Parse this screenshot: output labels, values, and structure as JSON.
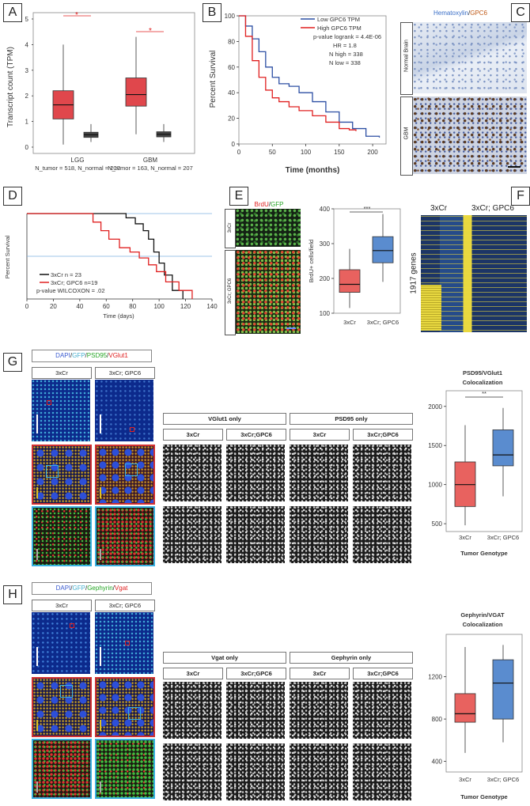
{
  "panels": {
    "A": {
      "label": "A",
      "ylabel": "Transcript count (TPM)",
      "yticks": [
        "0",
        "1",
        "2",
        "3",
        "4",
        "5"
      ],
      "groups": [
        "LGG",
        "GBM"
      ],
      "n_lgg": "N_tumor = 518, N_normal = 207",
      "n_gbm": "N_tumor = 163, N_normal = 207",
      "sig": [
        "*",
        "*"
      ]
    },
    "B": {
      "label": "B",
      "ylabel": "Percent Survival",
      "xlabel": "Time (months)",
      "legend": [
        "Low GPC6 TPM",
        "High GPC6 TPM"
      ],
      "stats": [
        "p-value logrank = 4.4E-06",
        "HR = 1.8",
        "N high = 338",
        "N low = 338"
      ]
    },
    "C": {
      "label": "C",
      "title_blue": "Hematoxylin",
      "title_sep": "/",
      "title_brown": "GPC6",
      "row_labels": [
        "Normal Brain",
        "GBM"
      ]
    },
    "D": {
      "label": "D",
      "ylabel": "Percent Survival",
      "xlabel": "Time (days)",
      "legend": [
        "3xCr n = 23",
        "3xCr; GPC6 n=19",
        "p-value WILCOXON = .02"
      ]
    },
    "E": {
      "label": "E",
      "title_red": "BrdU",
      "title_sep": "/",
      "title_green": "GFP",
      "row_labels": [
        "3xCr",
        "3xCr; GPC6"
      ],
      "ylabel": "BrdU+ cells/field",
      "sig": "***",
      "groups": [
        "3xCr",
        "3xCr; GPC6"
      ]
    },
    "F": {
      "label": "F",
      "cols": [
        "3xCr",
        "3xCr; GPC6"
      ],
      "rowlabel": "1917 genes"
    },
    "G": {
      "label": "G",
      "stain": [
        "DAPI",
        "/",
        "GFP",
        "/",
        "PSD95",
        "/",
        "VGlut1"
      ],
      "cols": [
        "3xCr",
        "3xCr; GPC6"
      ],
      "groups_hdr": [
        "VGlut1 only",
        "PSD95 only"
      ],
      "sub_hdr": [
        "3xCr",
        "3xCr;GPC6",
        "3xCr",
        "3xCr;GPC6"
      ],
      "plot_title": "PSD95/VGlut1 Colocalization",
      "sig": "**",
      "xlabel": "Tumor Genotype",
      "groups": [
        "3xCr",
        "3xCr; GPC6"
      ]
    },
    "H": {
      "label": "H",
      "stain": [
        "DAPI",
        "/",
        "GFP",
        "/",
        "Gephyrin",
        "/",
        "Vgat"
      ],
      "cols": [
        "3xCr",
        "3xCr; GPC6"
      ],
      "groups_hdr": [
        "Vgat only",
        "Gephyrin only"
      ],
      "sub_hdr": [
        "3xCr",
        "3xCr;GPC6",
        "3xCr",
        "3xCr;GPC6"
      ],
      "plot_title": "Gephyrin/VGAT Colocalization",
      "xlabel": "Tumor Genotype",
      "groups": [
        "3xCr",
        "3xCr; GPC6"
      ]
    }
  },
  "chart_data": [
    {
      "panel": "A",
      "type": "box",
      "categories": [
        "LGG tumor",
        "LGG normal",
        "GBM tumor",
        "GBM normal"
      ],
      "series": [
        {
          "name": "tumor",
          "color": "#e0474c",
          "q1": [
            1.1,
            null,
            1.6,
            null
          ],
          "median": [
            1.65,
            null,
            2.05,
            null
          ],
          "q3": [
            2.2,
            null,
            2.7,
            null
          ],
          "whisker_low": [
            0.1,
            null,
            0.5,
            null
          ],
          "whisker_high": [
            4.0,
            null,
            4.3,
            null
          ]
        },
        {
          "name": "normal",
          "color": "#444444",
          "q1": [
            null,
            0.38,
            null,
            0.4
          ],
          "median": [
            null,
            0.48,
            null,
            0.5
          ],
          "q3": [
            null,
            0.58,
            null,
            0.6
          ],
          "whisker_low": [
            null,
            0.2,
            null,
            0.2
          ],
          "whisker_high": [
            null,
            0.9,
            null,
            0.9
          ]
        }
      ],
      "ylim": [
        0,
        5
      ]
    },
    {
      "panel": "B",
      "type": "line",
      "x_ticks": [
        0,
        50,
        100,
        150,
        200
      ],
      "y_ticks": [
        0,
        20,
        40,
        60,
        80,
        100
      ],
      "series": [
        {
          "name": "Low GPC6 TPM",
          "color": "#2c4fa3",
          "x": [
            0,
            10,
            20,
            30,
            40,
            50,
            60,
            75,
            90,
            110,
            130,
            150,
            170,
            190,
            210
          ],
          "y": [
            100,
            92,
            82,
            72,
            60,
            52,
            47,
            45,
            40,
            33,
            25,
            17,
            12,
            6,
            5
          ]
        },
        {
          "name": "High GPC6 TPM",
          "color": "#e02020",
          "x": [
            0,
            10,
            20,
            30,
            40,
            50,
            60,
            75,
            90,
            110,
            130,
            150,
            165,
            175
          ],
          "y": [
            100,
            84,
            65,
            52,
            42,
            36,
            33,
            29,
            26,
            22,
            17,
            12,
            11,
            10
          ]
        }
      ],
      "xlim": [
        0,
        220
      ],
      "ylim": [
        0,
        100
      ]
    },
    {
      "panel": "D",
      "type": "line",
      "x_ticks": [
        0,
        20,
        40,
        60,
        80,
        100,
        120,
        140
      ],
      "series": [
        {
          "name": "3xCr n = 23",
          "color": "#111111",
          "x": [
            0,
            68,
            75,
            82,
            88,
            92,
            96,
            100,
            104,
            110,
            118
          ],
          "y": [
            100,
            100,
            95,
            88,
            80,
            70,
            55,
            42,
            28,
            10,
            0
          ]
        },
        {
          "name": "3xCr; GPC6 n=19",
          "color": "#e02020",
          "x": [
            0,
            42,
            50,
            56,
            62,
            70,
            78,
            85,
            92,
            98,
            105,
            115,
            125
          ],
          "y": [
            100,
            100,
            90,
            80,
            70,
            60,
            55,
            48,
            40,
            32,
            20,
            10,
            0
          ]
        }
      ],
      "xlim": [
        0,
        140
      ],
      "ylim": [
        0,
        100
      ]
    },
    {
      "panel": "E",
      "type": "box",
      "categories": [
        "3xCr",
        "3xCr; GPC6"
      ],
      "q1": [
        160,
        245
      ],
      "median": [
        183,
        280
      ],
      "q3": [
        225,
        320
      ],
      "whisker_low": [
        115,
        190
      ],
      "whisker_high": [
        285,
        385
      ],
      "colors": [
        "#e8625f",
        "#5a8ccf"
      ],
      "y_ticks": [
        100,
        200,
        300,
        400
      ],
      "ylim": [
        100,
        400
      ]
    },
    {
      "panel": "G",
      "type": "box",
      "categories": [
        "3xCr",
        "3xCr; GPC6"
      ],
      "q1": [
        720,
        1240
      ],
      "median": [
        1000,
        1380
      ],
      "q3": [
        1290,
        1700
      ],
      "whisker_low": [
        480,
        850
      ],
      "whisker_high": [
        1760,
        1980
      ],
      "colors": [
        "#e8625f",
        "#5a8ccf"
      ],
      "y_ticks": [
        500,
        1000,
        1500,
        2000
      ],
      "ylim": [
        400,
        2200
      ]
    },
    {
      "panel": "H",
      "type": "box",
      "categories": [
        "3xCr",
        "3xCr; GPC6"
      ],
      "q1": [
        770,
        800
      ],
      "median": [
        850,
        1140
      ],
      "q3": [
        1040,
        1360
      ],
      "whisker_low": [
        480,
        580
      ],
      "whisker_high": [
        1480,
        1500
      ],
      "colors": [
        "#e8625f",
        "#5a8ccf"
      ],
      "y_ticks": [
        400,
        800,
        1200
      ],
      "ylim": [
        300,
        1600
      ]
    }
  ]
}
